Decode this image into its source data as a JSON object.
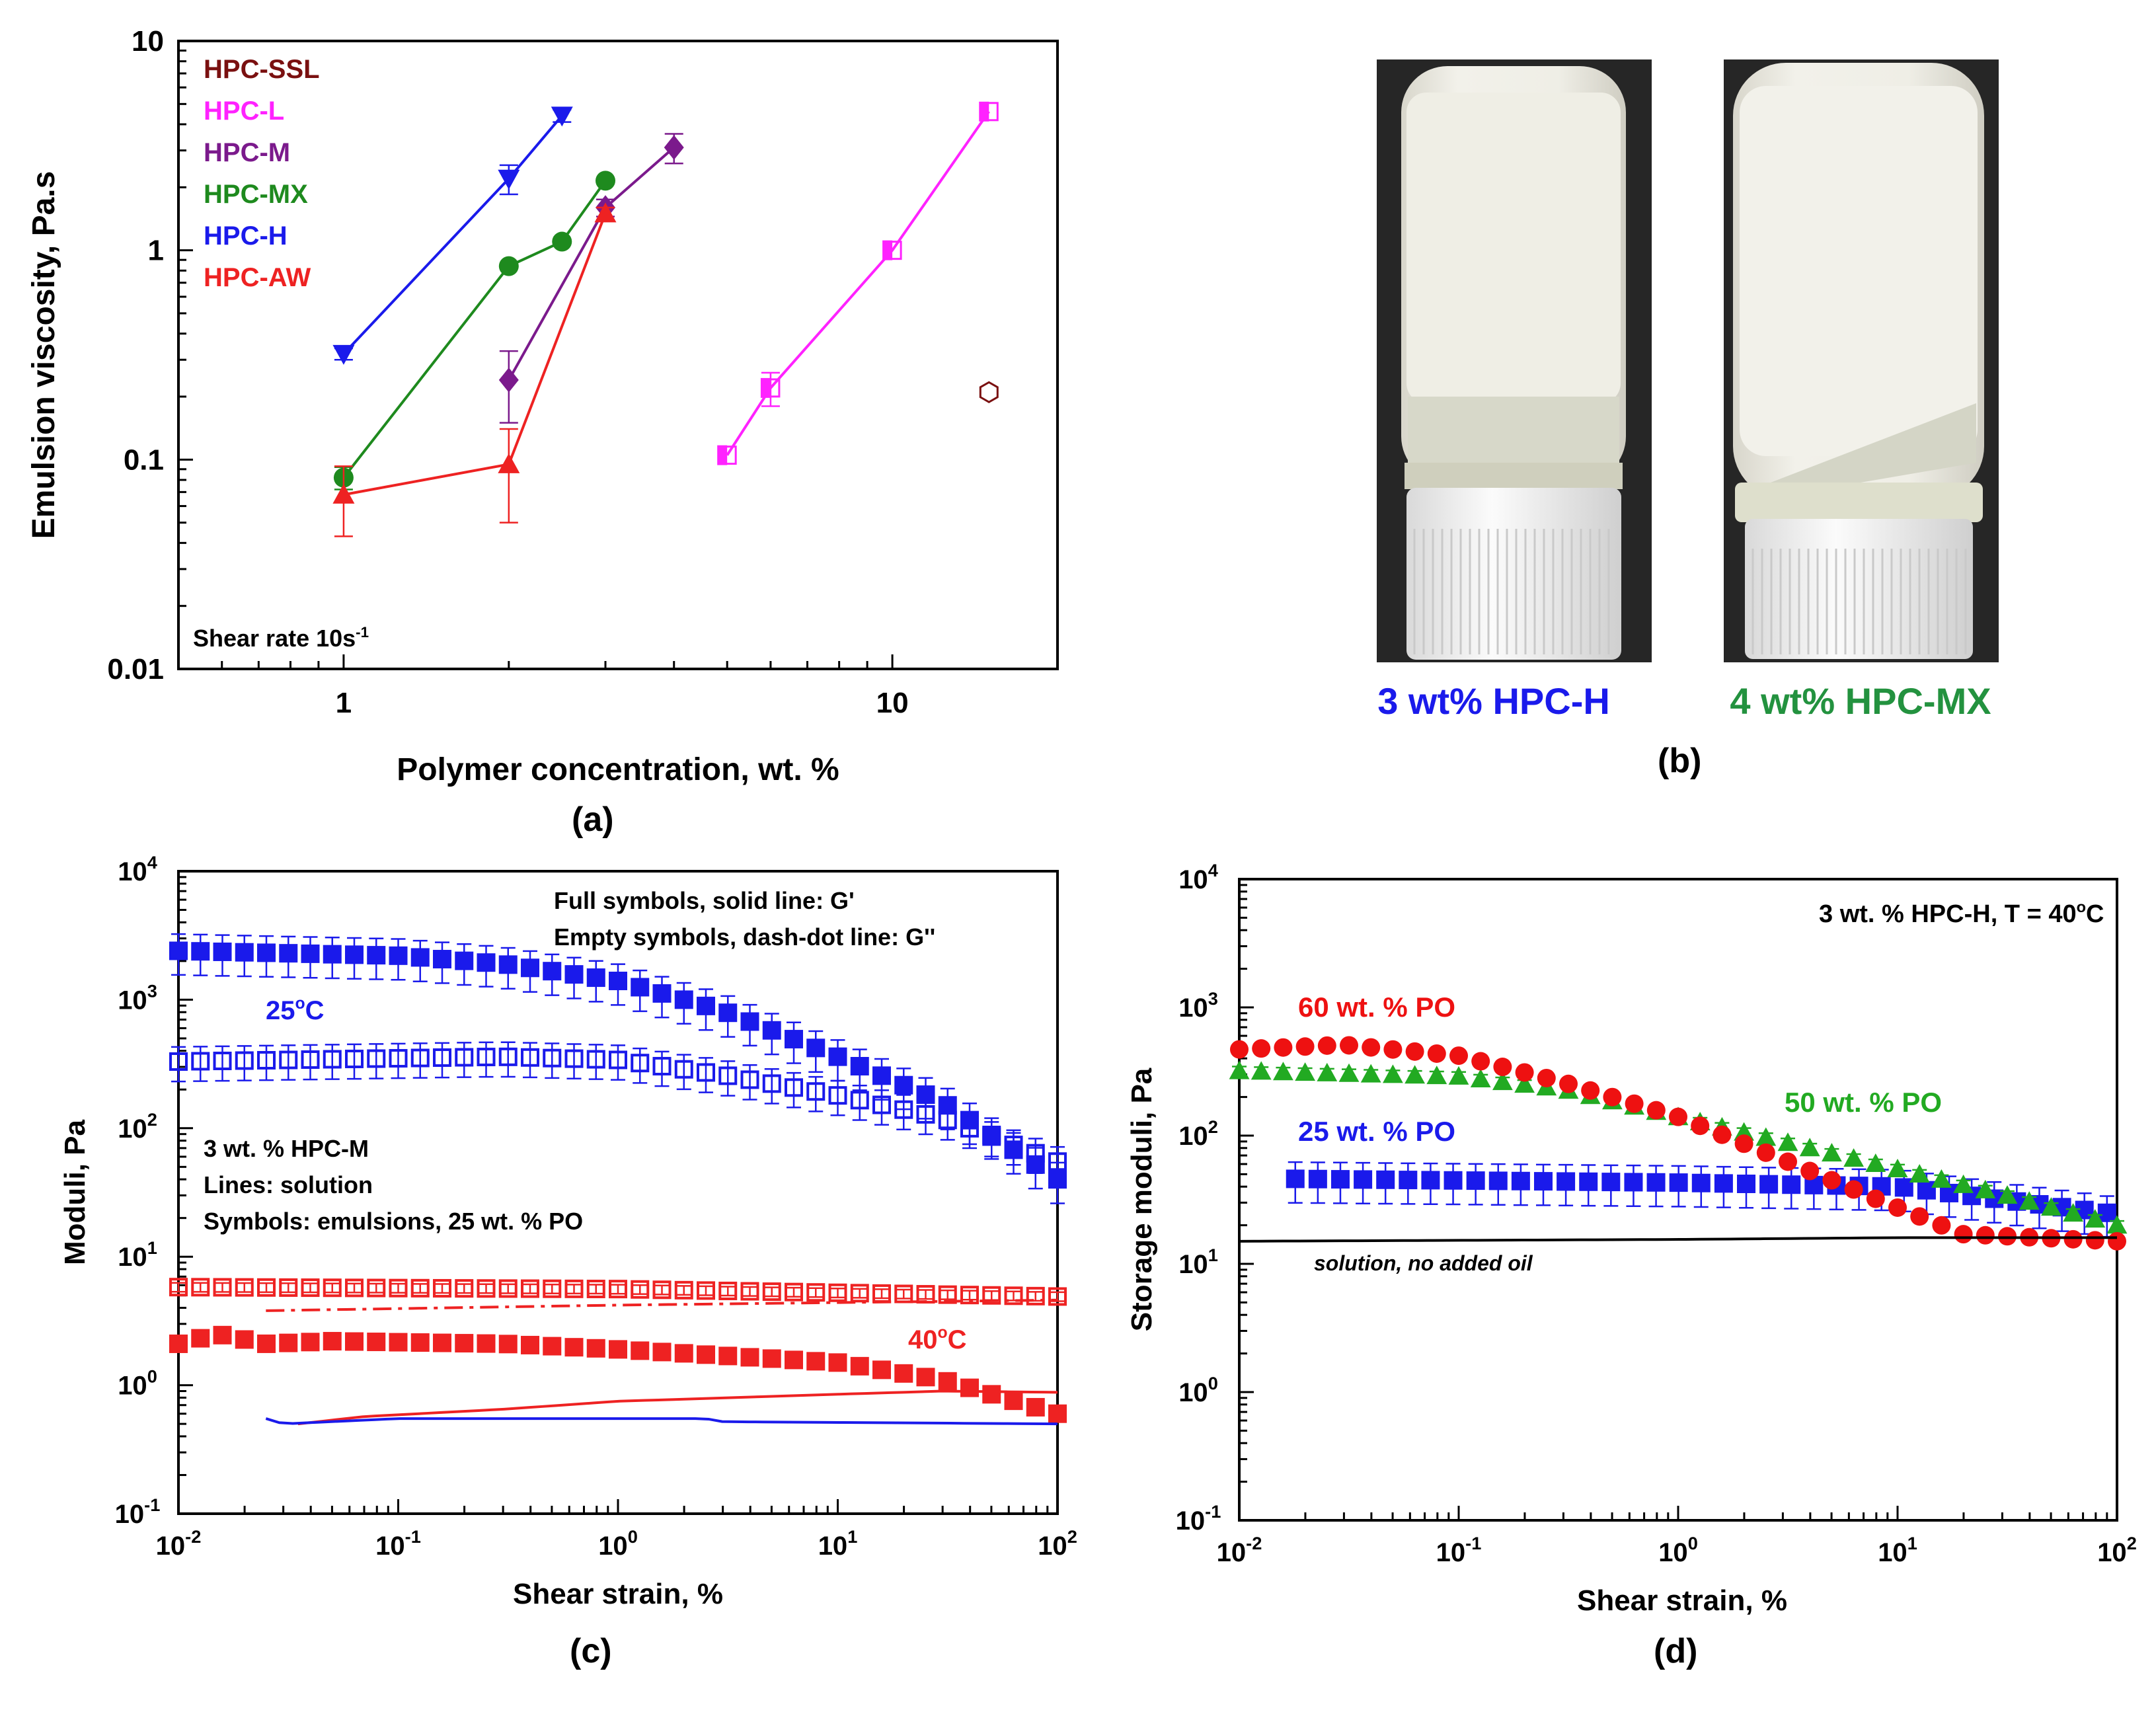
{
  "figure_labels": {
    "a": "(a)",
    "b": "(b)",
    "c": "(c)",
    "d": "(d)"
  },
  "colors": {
    "hpc_ssl": "#7a1010",
    "hpc_l": "#ff22ff",
    "hpc_m": "#7b1a8c",
    "hpc_mx": "#1e8a1e",
    "hpc_h": "#1a1aeb",
    "hpc_aw": "#ee2222",
    "emulsion_60": "#ee1111",
    "emulsion_50": "#22aa22",
    "emulsion_25": "#1a1aeb",
    "vial_cap": "#f4f4f4",
    "emulsion_white": "#ecebe2",
    "photo_bg": "#2a2a2a"
  },
  "panel_b": {
    "caption_h": "3 wt% HPC-H",
    "caption_mx": "4 wt% HPC-MX",
    "caption_h_color": "#1a1aeb",
    "caption_mx_color": "#23923f"
  },
  "chart_data": [
    {
      "id": "a",
      "type": "line",
      "title": "",
      "xlabel": "Polymer concentration, wt. %",
      "ylabel": "Emulsion viscosity, Pa.s",
      "xscale": "log",
      "yscale": "log",
      "xlim": [
        0.5,
        20
      ],
      "ylim": [
        0.01,
        10
      ],
      "xticks": [
        {
          "v": 1,
          "label": "1"
        },
        {
          "v": 10,
          "label": "10"
        }
      ],
      "yticks": [
        {
          "v": 0.01,
          "label": "0.01"
        },
        {
          "v": 0.1,
          "label": "0.1"
        },
        {
          "v": 1,
          "label": "1"
        },
        {
          "v": 10,
          "label": "10"
        }
      ],
      "annotation": {
        "base": "Shear rate 10s",
        "sup": "-1"
      },
      "legend_position": "top-left",
      "series": [
        {
          "name": "HPC-SSL",
          "color": "#7a1010",
          "marker": "half-hexagon",
          "line": false,
          "x": [
            15
          ],
          "y": [
            0.21
          ],
          "err": [
            0
          ]
        },
        {
          "name": "HPC-L",
          "color": "#ff22ff",
          "marker": "half-square",
          "line": true,
          "x": [
            5,
            6,
            10,
            15
          ],
          "y": [
            0.105,
            0.22,
            1.0,
            4.6
          ],
          "err": [
            0,
            0.04,
            0,
            0
          ]
        },
        {
          "name": "HPC-M",
          "color": "#7b1a8c",
          "marker": "diamond",
          "line": true,
          "x": [
            2,
            3,
            4
          ],
          "y": [
            0.24,
            1.6,
            3.1
          ],
          "err": [
            0.09,
            0.15,
            0.5
          ]
        },
        {
          "name": "HPC-MX",
          "color": "#1e8a1e",
          "marker": "circle",
          "line": true,
          "x": [
            1,
            2,
            2.5,
            3
          ],
          "y": [
            0.082,
            0.84,
            1.1,
            2.15
          ],
          "err": [
            0.01,
            0,
            0,
            0
          ]
        },
        {
          "name": "HPC-H",
          "color": "#1a1aeb",
          "marker": "triangle-down",
          "line": true,
          "x": [
            1,
            2,
            2.5
          ],
          "y": [
            0.32,
            2.2,
            4.4
          ],
          "err": [
            0.02,
            0.35,
            0.3
          ]
        },
        {
          "name": "HPC-AW",
          "color": "#ee2222",
          "marker": "triangle-up",
          "line": true,
          "x": [
            1,
            2,
            3
          ],
          "y": [
            0.068,
            0.095,
            1.5
          ],
          "err": [
            0.025,
            0.045,
            0.1
          ]
        }
      ]
    },
    {
      "id": "c",
      "type": "line",
      "xlabel": "Shear strain, %",
      "ylabel": "Moduli, Pa",
      "xscale": "log",
      "yscale": "log",
      "xlim": [
        0.01,
        100
      ],
      "ylim": [
        0.1,
        10000
      ],
      "xtick_exponents": [
        "-2",
        "-1",
        "0",
        "1",
        "2"
      ],
      "ytick_exponents": [
        "-1",
        "0",
        "1",
        "2",
        "3",
        "4"
      ],
      "tick_base": "10",
      "notes": {
        "symbols_note_1": "Full symbols, solid line: G'",
        "symbols_note_2": "Empty symbols, dash-dot line: G''",
        "sample": "3 wt. % HPC-M",
        "lines_note": "Lines: solution",
        "symbols_note": "Symbols: emulsions, 25 wt. % PO",
        "temp_25": {
          "base": "25",
          "sup": "o",
          "unit": "C"
        },
        "temp_40": {
          "base": "40",
          "sup": "o",
          "unit": "C"
        }
      },
      "series": [
        {
          "name": "G' emulsion 25°C",
          "color": "#1a1aeb",
          "marker": "square-filled",
          "x0": 0.01,
          "x1": 100,
          "n": 41,
          "anchors": [
            [
              0.01,
              2400
            ],
            [
              0.1,
              2200
            ],
            [
              0.3,
              1900
            ],
            [
              1,
              1400
            ],
            [
              3,
              820
            ],
            [
              10,
              360
            ],
            [
              30,
              160
            ],
            [
              100,
              40
            ]
          ],
          "rel_err": 0.35
        },
        {
          "name": "G'' emulsion 25°C",
          "color": "#1a1aeb",
          "marker": "square-open",
          "x0": 0.01,
          "x1": 100,
          "n": 41,
          "anchors": [
            [
              0.01,
              330
            ],
            [
              0.1,
              350
            ],
            [
              0.3,
              360
            ],
            [
              1,
              340
            ],
            [
              3,
              260
            ],
            [
              10,
              180
            ],
            [
              30,
              120
            ],
            [
              100,
              55
            ]
          ],
          "rel_err": 0.3
        },
        {
          "name": "G'' emulsion 40°C",
          "color": "#ee2222",
          "marker": "square-open",
          "x0": 0.01,
          "x1": 100,
          "n": 41,
          "anchors": [
            [
              0.01,
              5.8
            ],
            [
              1,
              5.6
            ],
            [
              100,
              4.9
            ]
          ],
          "rel_err": 0.08
        },
        {
          "name": "G' emulsion 40°C",
          "color": "#ee2222",
          "marker": "square-filled",
          "x0": 0.01,
          "x1": 100,
          "n": 41,
          "anchors": [
            [
              0.01,
              2.1
            ],
            [
              0.015,
              2.5
            ],
            [
              0.025,
              2.1
            ],
            [
              0.05,
              2.2
            ],
            [
              0.3,
              2.1
            ],
            [
              1,
              1.9
            ],
            [
              10,
              1.5
            ],
            [
              30,
              1.1
            ],
            [
              100,
              0.6
            ]
          ],
          "rel_err": 0
        },
        {
          "name": "G'' solution 40°C",
          "color": "#ee2222",
          "line": "dash-dot",
          "x0": 0.025,
          "x1": 100,
          "anchors": [
            [
              0.025,
              3.8
            ],
            [
              1,
              4.2
            ],
            [
              100,
              4.6
            ]
          ]
        },
        {
          "name": "G' solution 40°C",
          "color": "#ee2222",
          "line": "solid",
          "x0": 0.035,
          "x1": 100,
          "anchors": [
            [
              0.035,
              0.5
            ],
            [
              0.07,
              0.57
            ],
            [
              0.3,
              0.65
            ],
            [
              1,
              0.75
            ],
            [
              10,
              0.85
            ],
            [
              30,
              0.9
            ],
            [
              100,
              0.88
            ]
          ]
        },
        {
          "name": "G' solution 25°C",
          "color": "#1a1aeb",
          "line": "solid",
          "x0": 0.025,
          "x1": 100,
          "anchors": [
            [
              0.025,
              0.55
            ],
            [
              0.03,
              0.5
            ],
            [
              0.1,
              0.55
            ],
            [
              2.5,
              0.55
            ],
            [
              3,
              0.52
            ],
            [
              100,
              0.5
            ]
          ]
        }
      ]
    },
    {
      "id": "d",
      "type": "line",
      "xlabel": "Shear strain, %",
      "ylabel": "Storage moduli, Pa",
      "xscale": "log",
      "yscale": "log",
      "xlim": [
        0.01,
        100
      ],
      "ylim": [
        0.1,
        10000
      ],
      "xtick_exponents": [
        "-2",
        "-1",
        "0",
        "1",
        "2"
      ],
      "ytick_exponents": [
        "-1",
        "0",
        "1",
        "2",
        "3",
        "4"
      ],
      "tick_base": "10",
      "notes": {
        "condition": {
          "base": "3 wt. % HPC-H, T = 40",
          "sup": "o",
          "unit": "C"
        },
        "label_60": "60 wt. % PO",
        "label_50": "50 wt. % PO",
        "label_25": "25 wt. % PO",
        "label_solution": "solution, no added oil"
      },
      "series": [
        {
          "name": "25 wt. % PO",
          "color": "#1a1aeb",
          "marker": "square-filled",
          "x0": 0.018,
          "x1": 90,
          "n": 37,
          "anchors": [
            [
              0.018,
              46
            ],
            [
              1,
              43
            ],
            [
              10,
              40
            ],
            [
              90,
              25
            ]
          ],
          "rel_err": 0.35
        },
        {
          "name": "50 wt. % PO",
          "color": "#22aa22",
          "marker": "triangle-up",
          "x0": 0.01,
          "x1": 100,
          "n": 41,
          "anchors": [
            [
              0.01,
              320
            ],
            [
              0.1,
              290
            ],
            [
              0.3,
              230
            ],
            [
              1,
              140
            ],
            [
              3,
              90
            ],
            [
              10,
              55
            ],
            [
              30,
              35
            ],
            [
              100,
              20
            ]
          ],
          "rel_err": 0.08
        },
        {
          "name": "60 wt. % PO",
          "color": "#ee1111",
          "marker": "circle",
          "x0": 0.01,
          "x1": 100,
          "n": 41,
          "anchors": [
            [
              0.01,
              470
            ],
            [
              0.03,
              510
            ],
            [
              0.1,
              420
            ],
            [
              0.3,
              260
            ],
            [
              1,
              140
            ],
            [
              3,
              65
            ],
            [
              8,
              32
            ],
            [
              20,
              17
            ],
            [
              100,
              15
            ]
          ],
          "rel_err": 0
        },
        {
          "name": "solution, no added oil",
          "color": "#000000",
          "line": "solid",
          "x0": 0.01,
          "x1": 100,
          "anchors": [
            [
              0.01,
              15
            ],
            [
              1,
              15.5
            ],
            [
              10,
              16
            ],
            [
              100,
              16
            ]
          ]
        }
      ]
    }
  ]
}
